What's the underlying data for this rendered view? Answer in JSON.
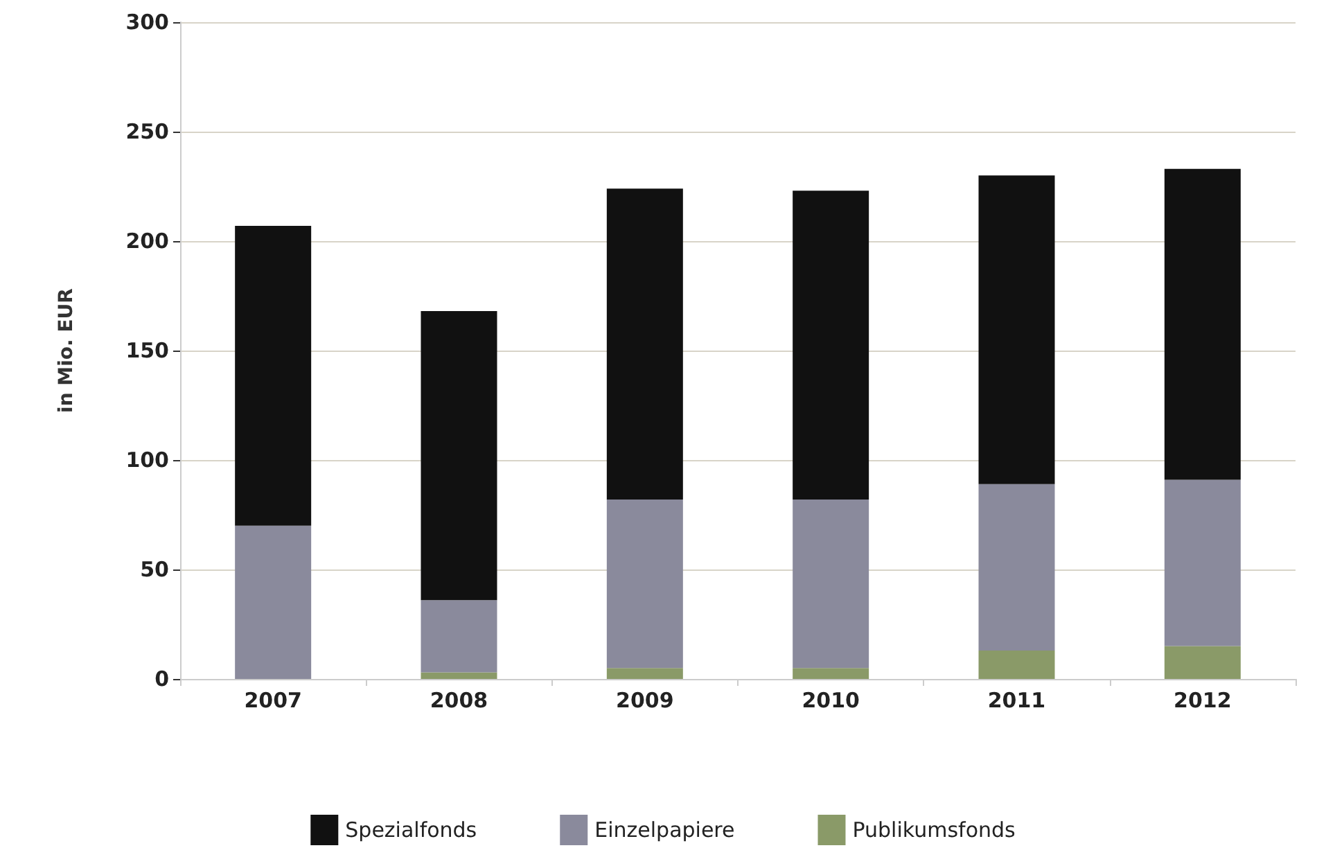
{
  "chart_data": {
    "type": "bar",
    "ylabel": "in Mio. EUR",
    "categories": [
      "2007",
      "2008",
      "2009",
      "2010",
      "2011",
      "2012"
    ],
    "stacked": true,
    "series": [
      {
        "name": "Publikumsfonds",
        "color": "#8a9a68",
        "values": [
          0,
          3,
          5,
          5,
          13,
          15
        ]
      },
      {
        "name": "Einzelpapiere",
        "color": "#8a8a9c",
        "values": [
          70,
          33,
          77,
          77,
          76,
          76
        ]
      },
      {
        "name": "Spezialfonds",
        "color": "#111111",
        "values": [
          137,
          132,
          142,
          141,
          141,
          142
        ]
      }
    ],
    "ylim": [
      0,
      300
    ],
    "yticks": [
      0,
      50,
      100,
      150,
      200,
      250,
      300
    ],
    "grid": "y",
    "legend": "bottom"
  }
}
